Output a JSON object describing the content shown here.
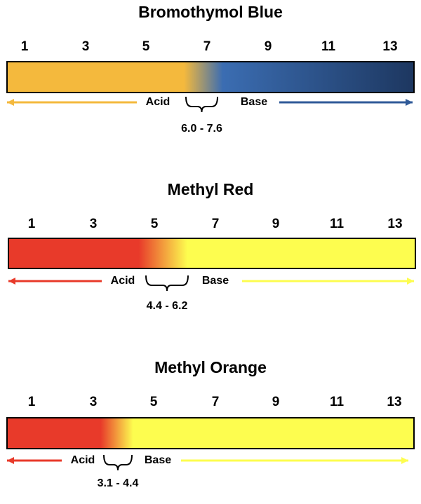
{
  "indicators": [
    {
      "title": "Bromothymol Blue",
      "ticks": [
        1,
        3,
        5,
        7,
        9,
        11,
        13
      ],
      "acid_label": "Acid",
      "base_label": "Base",
      "range": "6.0 - 7.6"
    },
    {
      "title": "Methyl Red",
      "ticks": [
        1,
        3,
        5,
        7,
        9,
        11,
        13
      ],
      "acid_label": "Acid",
      "base_label": "Base",
      "range": "4.4 - 6.2"
    },
    {
      "title": "Methyl Orange",
      "ticks": [
        1,
        3,
        5,
        7,
        9,
        11,
        13
      ],
      "acid_label": "Acid",
      "base_label": "Base",
      "range": "3.1 - 4.4"
    }
  ]
}
